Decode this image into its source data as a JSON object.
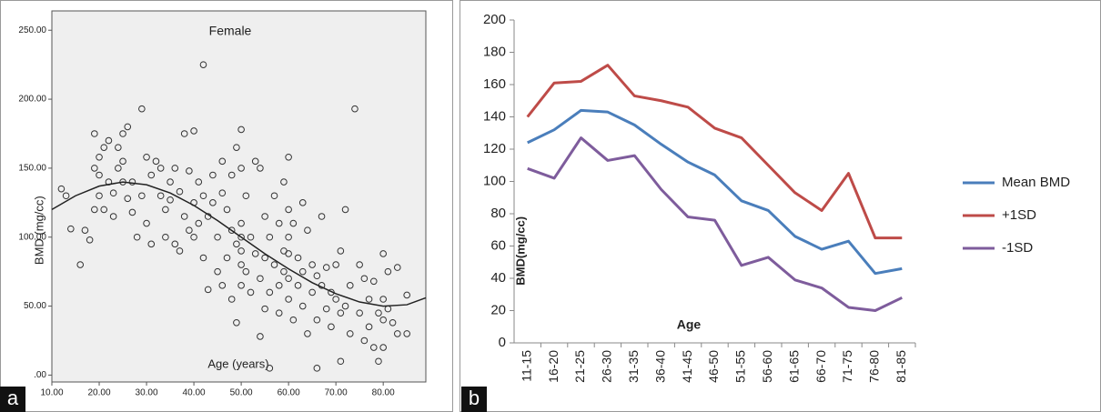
{
  "chart_data": [
    {
      "type": "scatter",
      "panel_label": "a",
      "title": "Female",
      "x_label": "Age (years)",
      "y_label": "BMD  (mg/cc)",
      "color": "#333333",
      "x": [
        12,
        14,
        13,
        16,
        17,
        18,
        19,
        19,
        19,
        20,
        20,
        20,
        21,
        21,
        22,
        22,
        23,
        23,
        24,
        24,
        25,
        25,
        25,
        26,
        26,
        27,
        27,
        28,
        29,
        29,
        30,
        30,
        31,
        31,
        32,
        33,
        33,
        34,
        34,
        35,
        35,
        36,
        36,
        37,
        37,
        38,
        38,
        39,
        39,
        40,
        40,
        40,
        41,
        41,
        42,
        42,
        42,
        43,
        43,
        44,
        44,
        45,
        45,
        46,
        46,
        46,
        47,
        47,
        48,
        48,
        48,
        49,
        49,
        49,
        50,
        50,
        50,
        50,
        50,
        50,
        50,
        51,
        51,
        52,
        52,
        53,
        53,
        54,
        54,
        54,
        55,
        55,
        55,
        56,
        56,
        56,
        57,
        57,
        58,
        58,
        58,
        59,
        59,
        59,
        60,
        60,
        60,
        60,
        60,
        60,
        61,
        61,
        62,
        62,
        63,
        63,
        63,
        64,
        64,
        65,
        65,
        66,
        66,
        66,
        67,
        67,
        68,
        68,
        69,
        69,
        70,
        70,
        71,
        71,
        71,
        72,
        72,
        73,
        73,
        74,
        75,
        75,
        76,
        76,
        77,
        77,
        78,
        78,
        79,
        79,
        80,
        80,
        80,
        80,
        81,
        81,
        82,
        83,
        83,
        85,
        85
      ],
      "values": [
        135,
        106,
        130,
        80,
        105,
        98,
        120,
        150,
        175,
        158,
        145,
        130,
        165,
        120,
        170,
        140,
        132,
        115,
        165,
        150,
        175,
        155,
        140,
        180,
        128,
        118,
        140,
        100,
        193,
        130,
        158,
        110,
        95,
        145,
        155,
        150,
        130,
        120,
        100,
        140,
        127,
        150,
        95,
        133,
        90,
        175,
        115,
        148,
        105,
        177,
        125,
        100,
        140,
        110,
        225,
        130,
        85,
        62,
        115,
        145,
        125,
        100,
        75,
        155,
        132,
        65,
        120,
        85,
        145,
        105,
        55,
        165,
        95,
        38,
        178,
        150,
        110,
        100,
        90,
        80,
        65,
        130,
        75,
        100,
        60,
        155,
        88,
        28,
        150,
        70,
        115,
        85,
        48,
        5,
        100,
        60,
        130,
        80,
        110,
        65,
        45,
        140,
        90,
        75,
        158,
        120,
        100,
        88,
        70,
        55,
        110,
        40,
        85,
        65,
        125,
        75,
        50,
        105,
        30,
        80,
        60,
        5,
        72,
        40,
        115,
        65,
        78,
        48,
        60,
        35,
        80,
        55,
        90,
        45,
        10,
        120,
        50,
        30,
        65,
        193,
        80,
        45,
        25,
        70,
        55,
        35,
        68,
        20,
        10,
        45,
        88,
        55,
        40,
        20,
        75,
        48,
        38,
        78,
        30,
        58,
        30
      ],
      "fit": {
        "color": "#222222",
        "x": [
          10,
          15,
          20,
          25,
          30,
          35,
          40,
          45,
          50,
          55,
          60,
          65,
          70,
          75,
          80,
          85,
          89
        ],
        "values": [
          120,
          130,
          137,
          140,
          138,
          132,
          123,
          112,
          100,
          88,
          77,
          67,
          59,
          53,
          50,
          51,
          56
        ]
      },
      "xlim": [
        10,
        89
      ],
      "ylim": [
        -5,
        264
      ],
      "xticks": [
        {
          "value": 10,
          "label": "10.00"
        },
        {
          "value": 20,
          "label": "20.00"
        },
        {
          "value": 30,
          "label": "30.00"
        },
        {
          "value": 40,
          "label": "40.00"
        },
        {
          "value": 50,
          "label": "50.00"
        },
        {
          "value": 60,
          "label": "60.00"
        },
        {
          "value": 70,
          "label": "70.00"
        },
        {
          "value": 80,
          "label": "80.00"
        }
      ],
      "yticks": [
        {
          "value": 0,
          "label": ".00"
        },
        {
          "value": 50,
          "label": "50.00"
        },
        {
          "value": 100,
          "label": "100.00"
        },
        {
          "value": 150,
          "label": "150.00"
        },
        {
          "value": 200,
          "label": "200.00"
        },
        {
          "value": 250,
          "label": "250.00"
        }
      ]
    },
    {
      "type": "line",
      "panel_label": "b",
      "x_label": "Age",
      "y_label": "BMD(mg/cc)",
      "categories": [
        "11-15",
        "16-20",
        "21-25",
        "26-30",
        "31-35",
        "36-40",
        "41-45",
        "46-50",
        "51-55",
        "56-60",
        "61-65",
        "66-70",
        "71-75",
        "76-80",
        "81-85"
      ],
      "series": [
        {
          "name": "Mean BMD",
          "color": "#4a7ebb",
          "values": [
            124,
            132,
            144,
            143,
            135,
            123,
            112,
            104,
            88,
            82,
            66,
            58,
            63,
            43,
            46
          ]
        },
        {
          "name": "+1SD",
          "color": "#be4b48",
          "values": [
            140,
            161,
            162,
            172,
            153,
            150,
            146,
            133,
            127,
            110,
            93,
            82,
            105,
            65,
            65
          ]
        },
        {
          "name": "-1SD",
          "color": "#7e5c9c",
          "values": [
            108,
            102,
            127,
            113,
            116,
            95,
            78,
            76,
            48,
            53,
            39,
            34,
            22,
            20,
            28
          ]
        }
      ],
      "ylim": [
        0,
        200
      ],
      "yticks": [
        0,
        20,
        40,
        60,
        80,
        100,
        120,
        140,
        160,
        180,
        200
      ],
      "legend": "right"
    }
  ]
}
